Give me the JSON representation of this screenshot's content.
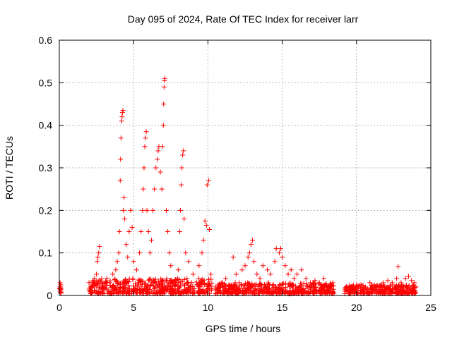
{
  "chart_data": {
    "type": "scatter",
    "title": "Day 095 of 2024, Rate Of TEC Index for receiver larr",
    "xlabel": "GPS time / hours",
    "ylabel": "ROTI / TECUs",
    "xlim": [
      0,
      25
    ],
    "ylim": [
      0,
      0.6
    ],
    "x_ticks": [
      0,
      5,
      10,
      15,
      20,
      25
    ],
    "x_tick_labels": [
      "0",
      "5",
      "10",
      "15",
      "20",
      "25"
    ],
    "y_ticks": [
      0,
      0.1,
      0.2,
      0.3,
      0.4,
      0.5,
      0.6
    ],
    "y_tick_labels": [
      "0",
      "0.1",
      "0.2",
      "0.3",
      "0.4",
      "0.5",
      "0.6"
    ],
    "grid": true,
    "marker": "+",
    "color": "#ff0000",
    "series": [
      {
        "name": "ROTI",
        "points": [
          [
            0.05,
            0.01
          ],
          [
            0.05,
            0.02
          ],
          [
            0.05,
            0.03
          ],
          [
            0.08,
            0.015
          ],
          [
            0.1,
            0.025
          ],
          [
            2.0,
            0.03
          ],
          [
            2.1,
            0.015
          ],
          [
            2.2,
            0.02
          ],
          [
            2.3,
            0.025
          ],
          [
            2.4,
            0.03
          ],
          [
            2.5,
            0.05
          ],
          [
            2.55,
            0.08
          ],
          [
            2.6,
            0.09
          ],
          [
            2.65,
            0.1
          ],
          [
            2.7,
            0.115
          ],
          [
            2.8,
            0.03
          ],
          [
            3.0,
            0.02
          ],
          [
            3.2,
            0.04
          ],
          [
            3.4,
            0.03
          ],
          [
            3.6,
            0.05
          ],
          [
            3.8,
            0.06
          ],
          [
            3.9,
            0.08
          ],
          [
            4.0,
            0.1
          ],
          [
            4.05,
            0.15
          ],
          [
            4.1,
            0.27
          ],
          [
            4.12,
            0.32
          ],
          [
            4.15,
            0.37
          ],
          [
            4.2,
            0.41
          ],
          [
            4.22,
            0.42
          ],
          [
            4.25,
            0.43
          ],
          [
            4.28,
            0.435
          ],
          [
            4.3,
            0.2
          ],
          [
            4.35,
            0.23
          ],
          [
            4.4,
            0.18
          ],
          [
            4.5,
            0.12
          ],
          [
            4.6,
            0.09
          ],
          [
            4.7,
            0.15
          ],
          [
            4.8,
            0.2
          ],
          [
            4.9,
            0.16
          ],
          [
            5.0,
            0.08
          ],
          [
            5.2,
            0.06
          ],
          [
            5.4,
            0.1
          ],
          [
            5.5,
            0.15
          ],
          [
            5.6,
            0.2
          ],
          [
            5.65,
            0.25
          ],
          [
            5.7,
            0.3
          ],
          [
            5.75,
            0.35
          ],
          [
            5.8,
            0.37
          ],
          [
            5.85,
            0.385
          ],
          [
            5.9,
            0.2
          ],
          [
            6.0,
            0.15
          ],
          [
            6.1,
            0.1
          ],
          [
            6.2,
            0.13
          ],
          [
            6.3,
            0.2
          ],
          [
            6.4,
            0.25
          ],
          [
            6.5,
            0.3
          ],
          [
            6.6,
            0.32
          ],
          [
            6.65,
            0.34
          ],
          [
            6.7,
            0.35
          ],
          [
            6.8,
            0.29
          ],
          [
            6.9,
            0.25
          ],
          [
            6.95,
            0.35
          ],
          [
            7.0,
            0.4
          ],
          [
            7.02,
            0.45
          ],
          [
            7.05,
            0.49
          ],
          [
            7.08,
            0.505
          ],
          [
            7.1,
            0.51
          ],
          [
            7.2,
            0.2
          ],
          [
            7.3,
            0.15
          ],
          [
            7.4,
            0.1
          ],
          [
            7.5,
            0.07
          ],
          [
            8.0,
            0.06
          ],
          [
            8.1,
            0.15
          ],
          [
            8.15,
            0.2
          ],
          [
            8.2,
            0.26
          ],
          [
            8.25,
            0.3
          ],
          [
            8.3,
            0.33
          ],
          [
            8.35,
            0.34
          ],
          [
            8.4,
            0.18
          ],
          [
            8.5,
            0.1
          ],
          [
            8.7,
            0.08
          ],
          [
            9.0,
            0.05
          ],
          [
            9.4,
            0.07
          ],
          [
            9.6,
            0.1
          ],
          [
            9.7,
            0.13
          ],
          [
            9.8,
            0.175
          ],
          [
            9.9,
            0.165
          ],
          [
            9.95,
            0.26
          ],
          [
            10.05,
            0.27
          ],
          [
            10.1,
            0.155
          ],
          [
            10.2,
            0.05
          ],
          [
            10.5,
            0.02
          ],
          [
            10.8,
            0.01
          ],
          [
            11.0,
            0.03
          ],
          [
            11.2,
            0.04
          ],
          [
            11.5,
            0.02
          ],
          [
            11.7,
            0.09
          ],
          [
            11.9,
            0.05
          ],
          [
            12.1,
            0.03
          ],
          [
            12.3,
            0.06
          ],
          [
            12.5,
            0.07
          ],
          [
            12.7,
            0.09
          ],
          [
            12.8,
            0.1
          ],
          [
            12.9,
            0.12
          ],
          [
            13.0,
            0.13
          ],
          [
            13.1,
            0.08
          ],
          [
            13.3,
            0.05
          ],
          [
            13.5,
            0.04
          ],
          [
            13.7,
            0.07
          ],
          [
            14.0,
            0.06
          ],
          [
            14.2,
            0.05
          ],
          [
            14.5,
            0.08
          ],
          [
            14.6,
            0.11
          ],
          [
            14.8,
            0.1
          ],
          [
            14.9,
            0.11
          ],
          [
            15.0,
            0.09
          ],
          [
            15.2,
            0.07
          ],
          [
            15.4,
            0.05
          ],
          [
            15.6,
            0.06
          ],
          [
            15.8,
            0.04
          ],
          [
            16.0,
            0.05
          ],
          [
            16.3,
            0.06
          ],
          [
            16.6,
            0.04
          ],
          [
            16.9,
            0.03
          ],
          [
            17.2,
            0.035
          ],
          [
            17.5,
            0.03
          ],
          [
            17.8,
            0.04
          ],
          [
            18.0,
            0.02
          ],
          [
            18.2,
            0.015
          ],
          [
            18.4,
            0.03
          ],
          [
            19.3,
            0.01
          ],
          [
            19.5,
            0.02
          ],
          [
            19.8,
            0.015
          ],
          [
            20.0,
            0.02
          ],
          [
            20.3,
            0.025
          ],
          [
            20.6,
            0.02
          ],
          [
            20.9,
            0.03
          ],
          [
            21.2,
            0.025
          ],
          [
            21.5,
            0.02
          ],
          [
            21.8,
            0.03
          ],
          [
            22.1,
            0.035
          ],
          [
            22.4,
            0.03
          ],
          [
            22.7,
            0.04
          ],
          [
            22.8,
            0.068
          ],
          [
            23.0,
            0.03
          ],
          [
            23.3,
            0.04
          ],
          [
            23.5,
            0.045
          ],
          [
            23.7,
            0.035
          ],
          [
            23.9,
            0.03
          ],
          [
            24.0,
            0.02
          ]
        ],
        "bands": [
          [
            0.0,
            0.15,
            0.005,
            0.02
          ],
          [
            2.0,
            10.3,
            0.004,
            0.04
          ],
          [
            10.5,
            18.5,
            0.004,
            0.03
          ],
          [
            19.2,
            24.0,
            0.004,
            0.025
          ]
        ]
      }
    ]
  }
}
